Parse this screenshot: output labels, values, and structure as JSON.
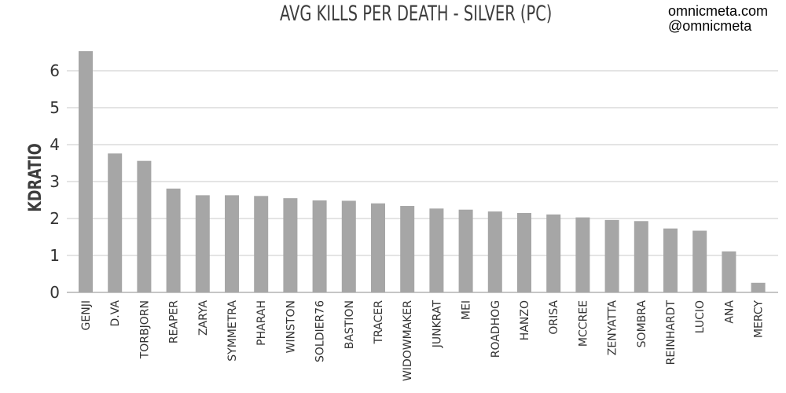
{
  "header": {
    "watermark_site": "omnicmeta.com",
    "watermark_handle": "@omnicmeta"
  },
  "colors": {
    "bar": "#a6a6a6",
    "grid": "#c8c8c8",
    "axis": "#8c8c8c",
    "text": "#333333"
  },
  "chart_data": {
    "type": "bar",
    "title": "AVG KILLS PER DEATH - SILVER (PC)",
    "xlabel": "",
    "ylabel": "KDRATIO",
    "ylim": [
      0,
      6.5
    ],
    "yticks": [
      0,
      1,
      2,
      3,
      4,
      5,
      6
    ],
    "grid": true,
    "categories": [
      "GENJI",
      "D.VA",
      "TORBJORN",
      "REAPER",
      "ZARYA",
      "SYMMETRA",
      "PHARAH",
      "WINSTON",
      "SOLDIER76",
      "BASTION",
      "TRACER",
      "WIDOWMAKER",
      "JUNKRAT",
      "MEI",
      "ROADHOG",
      "HANZO",
      "ORISA",
      "MCCREE",
      "ZENYATTA",
      "SOMBRA",
      "REINHARDT",
      "LUCIO",
      "ANA",
      "MERCY"
    ],
    "values": [
      6.53,
      3.76,
      3.56,
      2.81,
      2.63,
      2.63,
      2.61,
      2.55,
      2.49,
      2.48,
      2.41,
      2.34,
      2.27,
      2.24,
      2.19,
      2.15,
      2.11,
      2.03,
      1.96,
      1.93,
      1.73,
      1.67,
      1.11,
      0.26
    ]
  }
}
